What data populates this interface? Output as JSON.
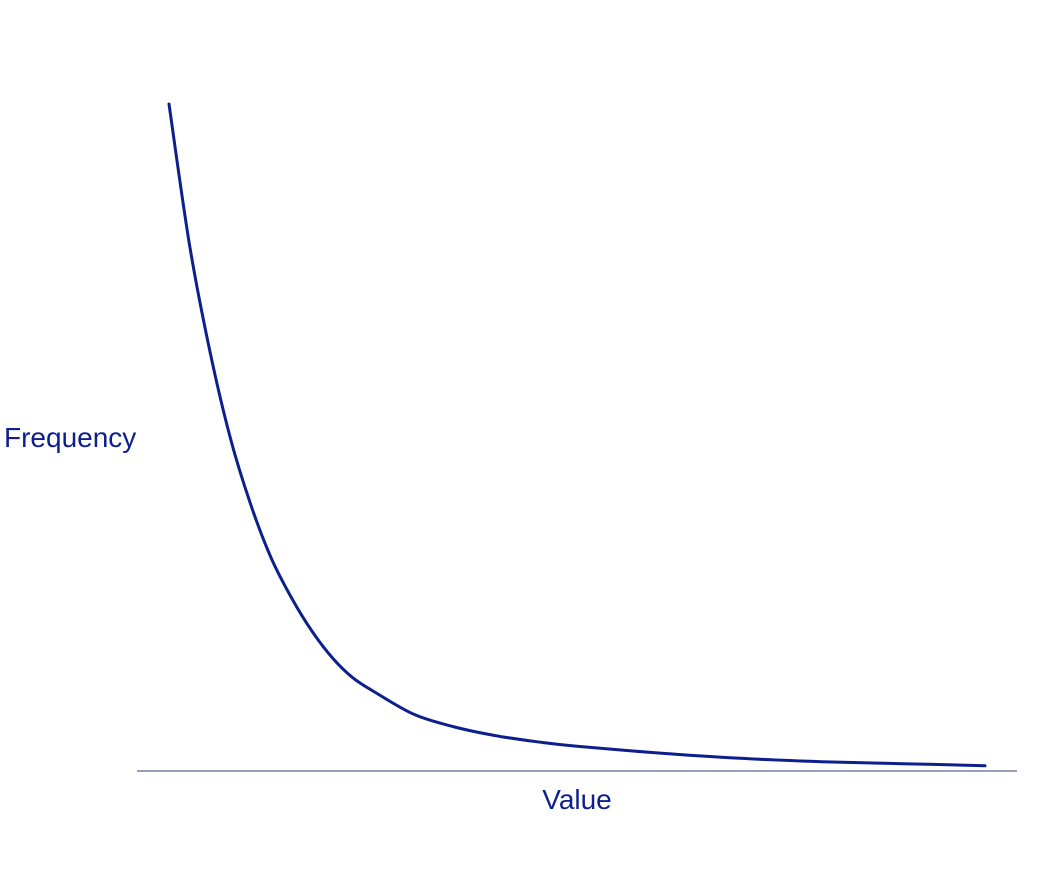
{
  "chart_data": {
    "type": "line",
    "title": "",
    "xlabel": "Value",
    "ylabel": "Frequency",
    "xlim": [
      0,
      10
    ],
    "ylim": [
      0,
      1
    ],
    "grid": false,
    "legend": "none",
    "colors": {
      "line": "#0d1f8c",
      "axis": "#9a9cb8",
      "label": "#0d1f8c"
    },
    "series": [
      {
        "x": [
          0,
          0.25,
          0.5,
          0.75,
          1,
          1.25,
          1.5,
          1.75,
          2,
          2.25,
          2.5,
          3,
          3.5,
          4,
          4.5,
          5,
          6,
          7,
          8,
          9,
          10
        ],
        "y": [
          1.0,
          0.79,
          0.63,
          0.5,
          0.4,
          0.32,
          0.26,
          0.21,
          0.17,
          0.14,
          0.12,
          0.085,
          0.066,
          0.053,
          0.044,
          0.037,
          0.027,
          0.019,
          0.014,
          0.011,
          0.008
        ]
      }
    ]
  }
}
